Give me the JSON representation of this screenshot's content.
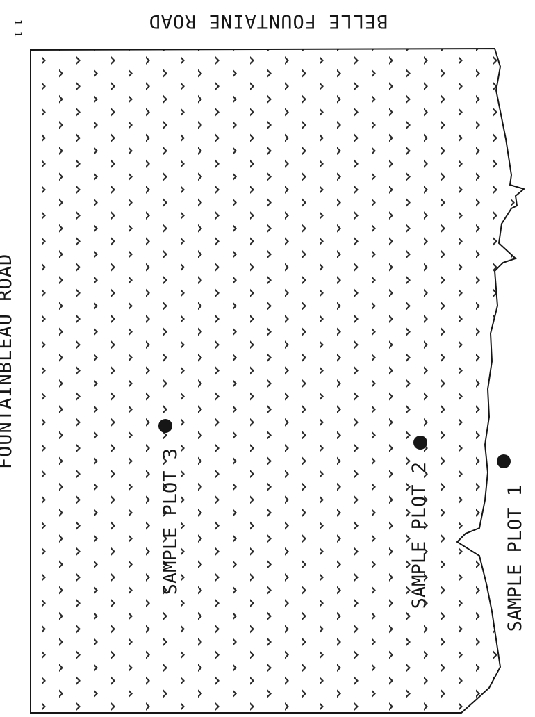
{
  "map": {
    "corner_mark": "1 1",
    "roads": {
      "top": "BELLE FOUNTAINE ROAD",
      "left": "FOUNTAINBLEAU ROAD"
    },
    "sample_plots": [
      {
        "id": "plot-1",
        "label": "SAMPLE PLOT 1"
      },
      {
        "id": "plot-2",
        "label": "SAMPLE PLOT 2"
      },
      {
        "id": "plot-3",
        "label": "SAMPLE PLOT 3"
      }
    ],
    "colors": {
      "ink": "#161616",
      "paper": "#ffffff",
      "pattern": "#2a2a2a"
    },
    "icons": {
      "pattern": "tree-pattern-icon",
      "plot": "plot-marker-icon"
    }
  }
}
